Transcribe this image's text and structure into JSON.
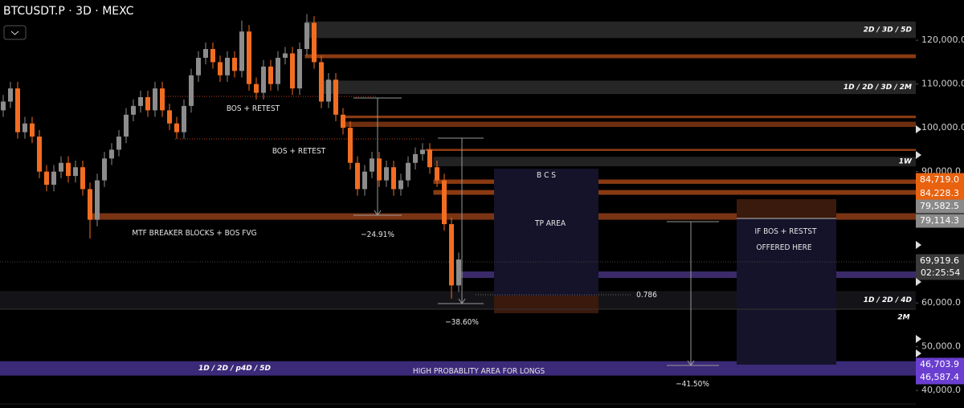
{
  "chart_data": {
    "type": "candlestick",
    "title": "BTCUSDT.P · 3D · MEXC",
    "ylim": [
      36000,
      129200
    ],
    "yticks": [
      {
        "value": 40000,
        "label": "40,000.0"
      },
      {
        "value": 50000,
        "label": "50,000.0"
      },
      {
        "value": 60000,
        "label": "60,000.0"
      },
      {
        "value": 90000,
        "label": "90,000.0"
      },
      {
        "value": 100000,
        "label": "100,000.0"
      },
      {
        "value": 110000,
        "label": "110,000.0"
      },
      {
        "value": 120000,
        "label": "120,000.0"
      }
    ],
    "up_color": "#8c8c8c",
    "down_color": "#f26d21",
    "open": [
      104000,
      106000,
      109000,
      99000,
      101000,
      98000,
      90000,
      87000,
      90000,
      92000,
      89000,
      91000,
      86000,
      79000,
      88000,
      93000,
      95000,
      98000,
      103000,
      105000,
      107000,
      104000,
      109000,
      104000,
      101000,
      99000,
      105000,
      112000,
      116000,
      118000,
      115000,
      112000,
      116000,
      113000,
      122000,
      110000,
      108000,
      114000,
      110000,
      116000,
      117000,
      109000,
      118000,
      124000,
      115000,
      106000,
      111000,
      103000,
      100000,
      92000,
      86000,
      90000,
      93000,
      88000,
      91000,
      86000,
      88000,
      92000,
      94000,
      95000,
      91000,
      88000,
      78000,
      64000
    ],
    "high": [
      107500,
      110500,
      110500,
      102500,
      102500,
      99500,
      91500,
      91500,
      93500,
      93500,
      92500,
      92500,
      87500,
      89500,
      94500,
      96500,
      99500,
      104500,
      106500,
      108500,
      108500,
      110500,
      110500,
      105500,
      102500,
      106500,
      113500,
      117500,
      119500,
      119500,
      116500,
      117500,
      117500,
      124500,
      123500,
      111500,
      115500,
      115500,
      117500,
      118500,
      118500,
      119500,
      126000,
      125500,
      116500,
      112500,
      112500,
      104500,
      101500,
      93500,
      91500,
      94500,
      94500,
      92500,
      92500,
      89500,
      93500,
      95500,
      96500,
      96500,
      92500,
      89500,
      79500,
      71500
    ],
    "low": [
      102500,
      104500,
      97500,
      97500,
      96500,
      88500,
      85500,
      85500,
      88500,
      87500,
      87500,
      84500,
      74700,
      77500,
      86500,
      91500,
      93500,
      96500,
      101500,
      103500,
      102500,
      102500,
      102500,
      99500,
      97500,
      97500,
      103500,
      110500,
      114500,
      113500,
      110500,
      110500,
      111500,
      111500,
      108500,
      106500,
      106500,
      108500,
      108500,
      114500,
      107500,
      107500,
      116500,
      113500,
      104500,
      104500,
      101500,
      98500,
      90500,
      84500,
      84500,
      88500,
      86500,
      86500,
      84500,
      84500,
      86500,
      90500,
      92500,
      89500,
      86500,
      76500,
      61000,
      62500
    ],
    "close": [
      106000,
      109000,
      99000,
      101000,
      98000,
      90000,
      87000,
      90000,
      92000,
      89000,
      91000,
      86000,
      79000,
      88000,
      93000,
      95000,
      98000,
      103000,
      105000,
      107000,
      104000,
      109000,
      104000,
      101000,
      99000,
      105000,
      112000,
      116000,
      118000,
      115000,
      112000,
      116000,
      113000,
      122000,
      110000,
      108000,
      114000,
      110000,
      116000,
      117000,
      109000,
      118000,
      124000,
      115000,
      106000,
      111000,
      103000,
      100000,
      92000,
      86000,
      90000,
      93000,
      88000,
      91000,
      86000,
      88000,
      92000,
      94000,
      95000,
      91000,
      88000,
      78000,
      64000,
      69919.6
    ],
    "zones": [
      {
        "low": 120600,
        "high": 124200,
        "color": "#262626",
        "label": "2D / 3D / 5D"
      },
      {
        "low": 116000,
        "high": 116700,
        "color": "#8a3a12"
      },
      {
        "low": 107800,
        "high": 110700,
        "color": "#262626",
        "label": "1D / 2D / 3D / 2M"
      },
      {
        "low": 102300,
        "high": 102700,
        "color": "#8a3a12"
      },
      {
        "low": 100300,
        "high": 101300,
        "color": "#6e2e10"
      },
      {
        "low": 94800,
        "high": 95100,
        "color": "#8a3a12"
      },
      {
        "low": 91300,
        "high": 93300,
        "color": "#222222",
        "label": "1W"
      },
      {
        "low": 87300,
        "high": 88100,
        "color": "#8a3a12"
      },
      {
        "low": 84800,
        "high": 85700,
        "color": "#8a3a12"
      },
      {
        "low": 79100,
        "high": 80400,
        "color": "#7a3414"
      },
      {
        "low": 65800,
        "high": 67100,
        "color": "#3a2a6a"
      },
      {
        "low": 58700,
        "high": 62600,
        "color": "#141418",
        "label": "1D / 2D / 4D"
      },
      {
        "low": 43500,
        "high": 46600,
        "color": "#3b2a78",
        "label": "1D / 2D / p4D / 5D"
      }
    ],
    "price_labels": [
      {
        "value": 84719.0,
        "label": "84,719.0",
        "color": "#e8620f"
      },
      {
        "value": 84228.3,
        "label": "84,228.3",
        "color": "#e8620f"
      },
      {
        "value": 79582.5,
        "label": "79,582.5",
        "color": "#8a8a8a"
      },
      {
        "value": 79114.3,
        "label": "79,114.3",
        "color": "#8a8a8a"
      },
      {
        "value": 69919.6,
        "label": "69,919.6",
        "color": "#3a3a3a",
        "countdown": "02:25:54"
      },
      {
        "value": 46703.9,
        "label": "46,703.9",
        "color": "#6a3fd0"
      },
      {
        "value": 46587.4,
        "label": "46,587.4",
        "color": "#6a3fd0"
      }
    ],
    "annotations": [
      "BOS + RETEST",
      "BOS + RETEST",
      "MTF BREAKER BLOCKS + BOS FVG",
      "−24.91%",
      "−38.60%",
      "−41.50%",
      "B C S",
      "TP AREA",
      "IF BOS + RESTST",
      "OFFERED HERE",
      "0.786",
      "HIGH PROBABLITY AREA FOR LONGS",
      "2M"
    ]
  }
}
